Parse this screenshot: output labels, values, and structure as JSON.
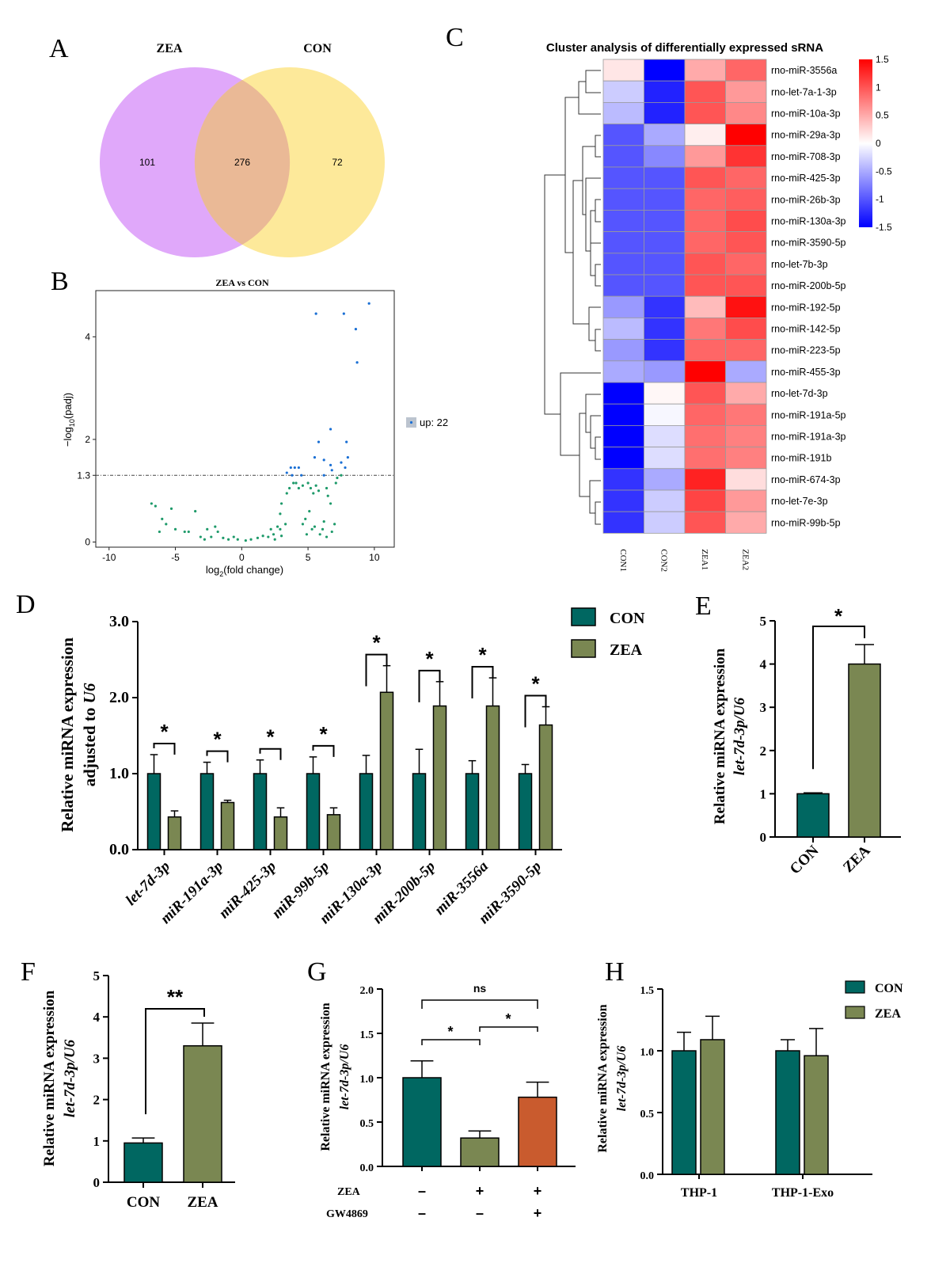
{
  "panels": {
    "A": "A",
    "B": "B",
    "C": "C",
    "D": "D",
    "E": "E",
    "F": "F",
    "G": "G",
    "H": "H"
  },
  "colors": {
    "con": "#006761",
    "zea": "#7a8752",
    "gw": "#c95b2e",
    "venn_zea": "#e0a8fa",
    "venn_con": "#fde99a",
    "venn_overlap": "#eab996",
    "volcano_up": "#1a6fd4",
    "volcano_ns": "#1e9a6a",
    "heat_low": "#0000ff",
    "heat_mid": "#ffffff",
    "heat_high": "#ff0000"
  },
  "chart_data": [
    {
      "panel": "A",
      "type": "venn",
      "sets": [
        {
          "name": "ZEA",
          "only": 101
        },
        {
          "name": "CON",
          "only": 72
        }
      ],
      "overlap": 276
    },
    {
      "panel": "B",
      "type": "scatter",
      "title": "ZEA vs CON",
      "xlabel_main": "log",
      "xlabel_sub": "2",
      "xlabel_rest": "(fold change)",
      "ylabel_main": "−log",
      "ylabel_sub": "10",
      "ylabel_rest": "(padj)",
      "xlim": [
        -11,
        11.5
      ],
      "ylim": [
        -0.1,
        4.9
      ],
      "xticks": [
        -10,
        -5,
        0,
        5,
        10
      ],
      "yticks": [
        {
          "v": 0,
          "label": "0"
        },
        {
          "v": 1.3,
          "label": "1.3"
        },
        {
          "v": 2,
          "label": "2"
        },
        {
          "v": 4,
          "label": "4"
        }
      ],
      "threshold": 1.3,
      "legend": "up: 22",
      "up_points": [
        [
          9.6,
          4.65
        ],
        [
          5.6,
          4.45
        ],
        [
          7.7,
          4.45
        ],
        [
          8.6,
          4.15
        ],
        [
          8.7,
          3.5
        ],
        [
          6.7,
          2.2
        ],
        [
          5.8,
          1.95
        ],
        [
          7.9,
          1.95
        ],
        [
          5.5,
          1.65
        ],
        [
          6.2,
          1.6
        ],
        [
          7.5,
          1.55
        ],
        [
          8.0,
          1.65
        ],
        [
          6.7,
          1.5
        ],
        [
          7.8,
          1.45
        ],
        [
          3.4,
          1.35
        ],
        [
          3.7,
          1.45
        ],
        [
          4.0,
          1.45
        ],
        [
          4.3,
          1.45
        ],
        [
          3.8,
          1.3
        ],
        [
          4.5,
          1.3
        ],
        [
          6.2,
          1.3
        ],
        [
          6.8,
          1.4
        ]
      ],
      "ns_points": [
        [
          -6.5,
          0.7
        ],
        [
          -5.3,
          0.65
        ],
        [
          -3.5,
          0.6
        ],
        [
          -6.0,
          0.45
        ],
        [
          -5.7,
          0.35
        ],
        [
          -5.0,
          0.25
        ],
        [
          -6.2,
          0.2
        ],
        [
          -4.3,
          0.2
        ],
        [
          -4.0,
          0.2
        ],
        [
          -2.6,
          0.25
        ],
        [
          -2.0,
          0.3
        ],
        [
          -1.8,
          0.2
        ],
        [
          -3.1,
          0.1
        ],
        [
          -2.8,
          0.05
        ],
        [
          -2.3,
          0.1
        ],
        [
          -1.4,
          0.08
        ],
        [
          -1.0,
          0.05
        ],
        [
          -0.6,
          0.1
        ],
        [
          -0.3,
          0.05
        ],
        [
          0.3,
          0.03
        ],
        [
          0.7,
          0.05
        ],
        [
          1.2,
          0.08
        ],
        [
          1.6,
          0.12
        ],
        [
          2.0,
          0.1
        ],
        [
          2.2,
          0.25
        ],
        [
          2.4,
          0.15
        ],
        [
          2.5,
          0.05
        ],
        [
          2.7,
          0.3
        ],
        [
          3.0,
          0.12
        ],
        [
          3.3,
          0.35
        ],
        [
          2.9,
          0.55
        ],
        [
          3.0,
          0.75
        ],
        [
          2.9,
          0.25
        ],
        [
          3.4,
          0.95
        ],
        [
          3.6,
          1.05
        ],
        [
          3.9,
          1.15
        ],
        [
          4.3,
          1.05
        ],
        [
          4.6,
          1.1
        ],
        [
          4.1,
          1.15
        ],
        [
          5.2,
          1.05
        ],
        [
          5.0,
          1.15
        ],
        [
          5.6,
          1.1
        ],
        [
          5.4,
          0.95
        ],
        [
          5.8,
          1.0
        ],
        [
          6.4,
          1.05
        ],
        [
          6.5,
          0.9
        ],
        [
          6.7,
          0.75
        ],
        [
          7.1,
          1.15
        ],
        [
          7.2,
          1.25
        ],
        [
          7.5,
          1.3
        ],
        [
          5.1,
          0.6
        ],
        [
          4.8,
          0.45
        ],
        [
          4.6,
          0.35
        ],
        [
          5.3,
          0.25
        ],
        [
          5.9,
          0.15
        ],
        [
          6.1,
          0.25
        ],
        [
          6.4,
          0.1
        ],
        [
          6.8,
          0.2
        ],
        [
          7.0,
          0.35
        ],
        [
          4.9,
          0.15
        ],
        [
          5.5,
          0.3
        ],
        [
          6.2,
          0.4
        ],
        [
          -6.8,
          0.75
        ]
      ]
    },
    {
      "panel": "C",
      "type": "heatmap",
      "title": "Cluster analysis of differentially expressed sRNA",
      "columns": [
        "CON1",
        "CON2",
        "ZEA1",
        "ZEA2"
      ],
      "rows": [
        "rno-miR-3556a",
        "rno-let-7a-1-3p",
        "rno-miR-10a-3p",
        "rno-miR-29a-3p",
        "rno-miR-708-3p",
        "rno-miR-425-3p",
        "rno-miR-26b-3p",
        "rno-miR-130a-3p",
        "rno-miR-3590-5p",
        "rno-let-7b-3p",
        "rno-miR-200b-5p",
        "rno-miR-192-5p",
        "rno-miR-142-5p",
        "rno-miR-223-5p",
        "rno-miR-455-3p",
        "rno-let-7d-3p",
        "rno-miR-191a-5p",
        "rno-miR-191a-3p",
        "rno-miR-191b",
        "rno-miR-674-3p",
        "rno-let-7e-3p",
        "rno-miR-99b-5p"
      ],
      "values": [
        [
          0.15,
          -1.5,
          0.5,
          0.9
        ],
        [
          -0.3,
          -1.3,
          1.0,
          0.6
        ],
        [
          -0.4,
          -1.3,
          1.0,
          0.7
        ],
        [
          -1.0,
          -0.5,
          0.1,
          1.5
        ],
        [
          -1.0,
          -0.7,
          0.6,
          1.2
        ],
        [
          -1.0,
          -1.0,
          1.0,
          0.9
        ],
        [
          -1.0,
          -1.0,
          0.9,
          0.95
        ],
        [
          -1.0,
          -1.0,
          0.9,
          1.05
        ],
        [
          -1.0,
          -1.0,
          0.9,
          1.0
        ],
        [
          -1.0,
          -1.0,
          1.0,
          0.9
        ],
        [
          -1.0,
          -1.0,
          1.0,
          1.0
        ],
        [
          -0.6,
          -1.2,
          0.4,
          1.4
        ],
        [
          -0.4,
          -1.2,
          0.8,
          1.05
        ],
        [
          -0.6,
          -1.2,
          0.9,
          0.9
        ],
        [
          -0.5,
          -0.6,
          1.5,
          -0.5
        ],
        [
          -1.5,
          0.05,
          1.0,
          0.5
        ],
        [
          -1.5,
          -0.05,
          0.9,
          0.8
        ],
        [
          -1.5,
          -0.2,
          0.85,
          0.75
        ],
        [
          -1.5,
          -0.2,
          0.85,
          0.75
        ],
        [
          -1.2,
          -0.5,
          1.3,
          0.2
        ],
        [
          -1.2,
          -0.3,
          1.1,
          0.6
        ],
        [
          -1.2,
          -0.3,
          1.0,
          0.5
        ]
      ],
      "colorbar": [
        "1.5",
        "1",
        "0.5",
        "0",
        "-0.5",
        "-1",
        "-1.5"
      ]
    },
    {
      "panel": "D",
      "type": "bar",
      "ylabel": "Relative miRNA expression",
      "ylabel2_prefix": "adjusted to ",
      "ylabel2_italic": "U6",
      "ylim": [
        0,
        3.0
      ],
      "yticks": [
        "0.0",
        "1.0",
        "2.0",
        "3.0"
      ],
      "categories": [
        "let-7d-3p",
        "miR-191a-3p",
        "miR-425-3p",
        "miR-99b-5p",
        "miR-130a-3p",
        "miR-200b-5p",
        "miR-3556a",
        "miR-3590-5p"
      ],
      "series": [
        {
          "name": "CON",
          "values": [
            1.0,
            1.0,
            1.0,
            1.0,
            1.0,
            1.0,
            1.0,
            1.0
          ],
          "errors": [
            0.25,
            0.15,
            0.18,
            0.22,
            0.24,
            0.32,
            0.17,
            0.12
          ]
        },
        {
          "name": "ZEA",
          "values": [
            0.43,
            0.62,
            0.43,
            0.46,
            2.07,
            1.89,
            1.89,
            1.64
          ],
          "errors": [
            0.08,
            0.03,
            0.12,
            0.09,
            0.35,
            0.32,
            0.37,
            0.24
          ]
        }
      ],
      "sig": [
        "*",
        "*",
        "*",
        "*",
        "*",
        "*",
        "*",
        "*"
      ]
    },
    {
      "panel": "E",
      "type": "bar",
      "ylabel": "Relative miRNA expression",
      "ylabel2": "let-7d-3p/U6",
      "ylim": [
        0,
        5
      ],
      "yticks": [
        "0",
        "1",
        "2",
        "3",
        "4",
        "5"
      ],
      "categories": [
        "CON",
        "ZEA"
      ],
      "values": [
        1.0,
        4.0
      ],
      "errors": [
        0.02,
        0.45
      ],
      "sig": "*"
    },
    {
      "panel": "F",
      "type": "bar",
      "ylabel": "Relative miRNA expression",
      "ylabel2": "let-7d-3p/U6",
      "ylim": [
        0,
        5
      ],
      "yticks": [
        "0",
        "1",
        "2",
        "3",
        "4",
        "5"
      ],
      "categories": [
        "CON",
        "ZEA"
      ],
      "values": [
        0.95,
        3.3
      ],
      "errors": [
        0.12,
        0.55
      ],
      "sig": "**"
    },
    {
      "panel": "G",
      "type": "bar",
      "ylabel": "Relative miRNA expression",
      "ylabel2": "let-7d-3p/U6",
      "ylim": [
        0,
        2.0
      ],
      "yticks": [
        "0.0",
        "0.5",
        "1.0",
        "1.5",
        "2.0"
      ],
      "values": [
        1.0,
        0.32,
        0.78
      ],
      "errors": [
        0.19,
        0.08,
        0.17
      ],
      "row_labels": [
        "ZEA",
        "GW4869"
      ],
      "treatments": [
        [
          "–",
          "+",
          "+"
        ],
        [
          "–",
          "–",
          "+"
        ]
      ],
      "comparisons": [
        {
          "label": "ns"
        },
        {
          "label": "*"
        },
        {
          "label": "*"
        }
      ]
    },
    {
      "panel": "H",
      "type": "bar",
      "ylabel": "Relative miRNA expression",
      "ylabel2": "let-7d-3p/U6",
      "ylim": [
        0,
        1.5
      ],
      "yticks": [
        "0.0",
        "0.5",
        "1.0",
        "1.5"
      ],
      "categories": [
        "THP-1",
        "THP-1-Exo"
      ],
      "series": [
        {
          "name": "CON",
          "values": [
            1.0,
            1.0
          ],
          "errors": [
            0.15,
            0.09
          ]
        },
        {
          "name": "ZEA",
          "values": [
            1.09,
            0.96
          ],
          "errors": [
            0.19,
            0.22
          ]
        }
      ]
    }
  ]
}
